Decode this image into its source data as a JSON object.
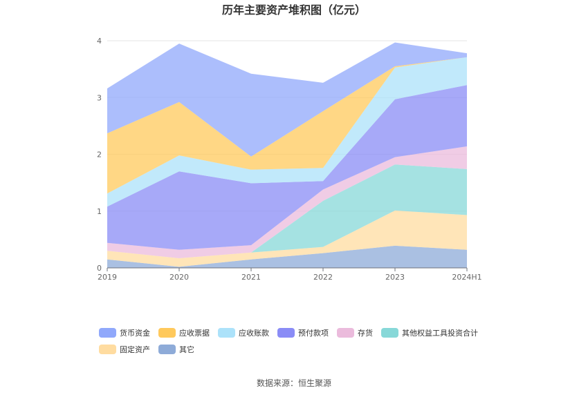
{
  "title": "历年主要资产堆积图（亿元）",
  "source": "数据来源：恒生聚源",
  "chart_data": {
    "type": "area",
    "stacked": true,
    "title": "历年主要资产堆积图（亿元）",
    "xlabel": "",
    "ylabel": "",
    "categories": [
      "2019",
      "2020",
      "2021",
      "2022",
      "2023",
      "2024H1"
    ],
    "ylim": [
      0,
      4
    ],
    "yticks": [
      0,
      1,
      2,
      3,
      4
    ],
    "grid": true,
    "legend_position": "bottom",
    "series": [
      {
        "name": "其它",
        "color": "#8eabd8",
        "values": [
          0.15,
          0.02,
          0.15,
          0.26,
          0.39,
          0.32
        ]
      },
      {
        "name": "固定资产",
        "color": "#ffdca0",
        "values": [
          0.15,
          0.15,
          0.12,
          0.11,
          0.62,
          0.61
        ]
      },
      {
        "name": "其他权益工具投资合计",
        "color": "#87d8d8",
        "values": [
          0.0,
          0.0,
          0.0,
          0.81,
          0.81,
          0.81
        ]
      },
      {
        "name": "存货",
        "color": "#ebbbdc",
        "values": [
          0.14,
          0.15,
          0.13,
          0.2,
          0.13,
          0.4
        ]
      },
      {
        "name": "预付款项",
        "color": "#8a8cf6",
        "values": [
          0.64,
          1.38,
          1.09,
          0.15,
          1.02,
          1.08
        ]
      },
      {
        "name": "应收账款",
        "color": "#ace2fa",
        "values": [
          0.23,
          0.28,
          0.24,
          0.23,
          0.56,
          0.49
        ]
      },
      {
        "name": "应收票据",
        "color": "#ffc95c",
        "values": [
          1.06,
          0.94,
          0.23,
          1.0,
          0.02,
          0.0
        ]
      },
      {
        "name": "货币资金",
        "color": "#90a8fb",
        "values": [
          0.79,
          1.03,
          1.46,
          0.5,
          0.42,
          0.07
        ]
      }
    ],
    "legend_order": [
      "货币资金",
      "应收票据",
      "应收账款",
      "预付款项",
      "存货",
      "其他权益工具投资合计",
      "固定资产",
      "其它"
    ]
  }
}
